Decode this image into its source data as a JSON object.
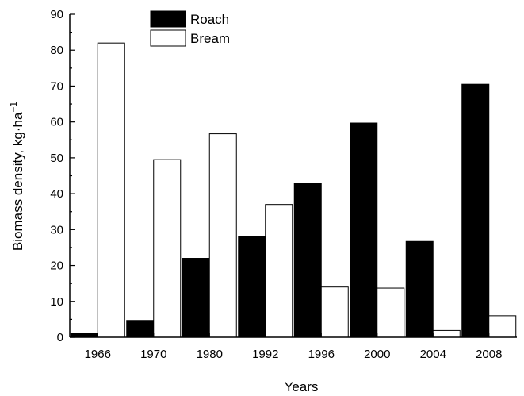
{
  "chart_data": {
    "type": "bar",
    "categories": [
      "1966",
      "1970",
      "1980",
      "1992",
      "1996",
      "2000",
      "2004",
      "2008"
    ],
    "series": [
      {
        "name": "Roach",
        "color": "#000000",
        "values": [
          1.2,
          4.7,
          22,
          28,
          43,
          59.7,
          26.7,
          70.5
        ]
      },
      {
        "name": "Bream",
        "color": "#ffffff",
        "values": [
          82,
          49.5,
          56.7,
          37,
          14,
          13.7,
          1.9,
          6
        ]
      }
    ],
    "xlabel": "Years",
    "ylabel_main": "Biomass density, kg·ha",
    "ylabel_sup": "−1",
    "ylim": [
      0,
      90
    ],
    "yticks": [
      "0",
      "10",
      "20",
      "30",
      "40",
      "50",
      "60",
      "70",
      "80",
      "90"
    ],
    "legend_position": "top-center",
    "grid": false
  }
}
